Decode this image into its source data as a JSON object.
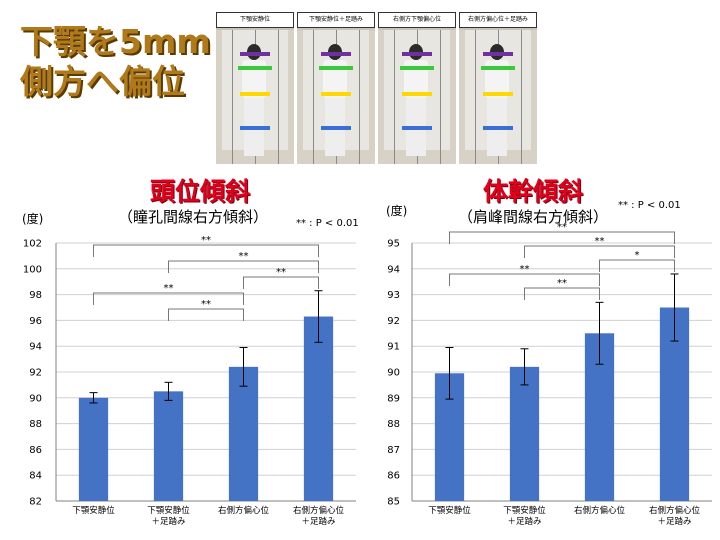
{
  "slide": {
    "title": "下顎を5mm\n側方へ偏位"
  },
  "photos": {
    "panels": [
      {
        "label": "下顎安静位"
      },
      {
        "label": "下顎安静位＋足踏み"
      },
      {
        "label": "右側方下顎偏心位"
      },
      {
        "label": "右側方偏心位＋足踏み"
      }
    ]
  },
  "significance_note": "** : P < 0.01",
  "chart_data": [
    {
      "type": "bar",
      "title": "頭位傾斜",
      "subtitle": "（瞳孔間線右方傾斜）",
      "ylabel": "(度)",
      "categories": [
        "下顎安静位",
        "下顎安静位\n＋足踏み",
        "右側方偏心位",
        "右側方偏心位\n＋足踏み"
      ],
      "values": [
        90.0,
        90.5,
        92.4,
        96.3
      ],
      "errors": [
        0.4,
        0.7,
        1.5,
        2.0
      ],
      "ylim": [
        82,
        102
      ],
      "yticks": [
        82,
        84,
        86,
        88,
        90,
        92,
        94,
        96,
        98,
        100,
        102
      ],
      "grid": true,
      "bar_color": "#4472c4",
      "significance": [
        {
          "from": 0,
          "to": 3,
          "label": "**"
        },
        {
          "from": 1,
          "to": 3,
          "label": "**"
        },
        {
          "from": 2,
          "to": 3,
          "label": "**"
        },
        {
          "from": 0,
          "to": 2,
          "label": "**"
        },
        {
          "from": 1,
          "to": 2,
          "label": "**"
        }
      ]
    },
    {
      "type": "bar",
      "title": "体幹傾斜",
      "subtitle": "（肩峰間線右方傾斜）",
      "ylabel": "(度)",
      "categories": [
        "下顎安静位",
        "下顎安静位\n＋足踏み",
        "右側方偏心位",
        "右側方偏心位\n＋足踏み"
      ],
      "values": [
        89.95,
        90.2,
        91.5,
        92.5
      ],
      "errors": [
        1.0,
        0.7,
        1.2,
        1.3
      ],
      "ylim": [
        85,
        95
      ],
      "yticks": [
        85,
        86,
        87,
        88,
        89,
        90,
        91,
        92,
        93,
        94,
        95
      ],
      "grid": true,
      "bar_color": "#4472c4",
      "significance": [
        {
          "from": 0,
          "to": 3,
          "label": "**"
        },
        {
          "from": 1,
          "to": 3,
          "label": "**"
        },
        {
          "from": 2,
          "to": 3,
          "label": "*"
        },
        {
          "from": 0,
          "to": 2,
          "label": "**"
        },
        {
          "from": 1,
          "to": 2,
          "label": "**"
        }
      ]
    }
  ]
}
